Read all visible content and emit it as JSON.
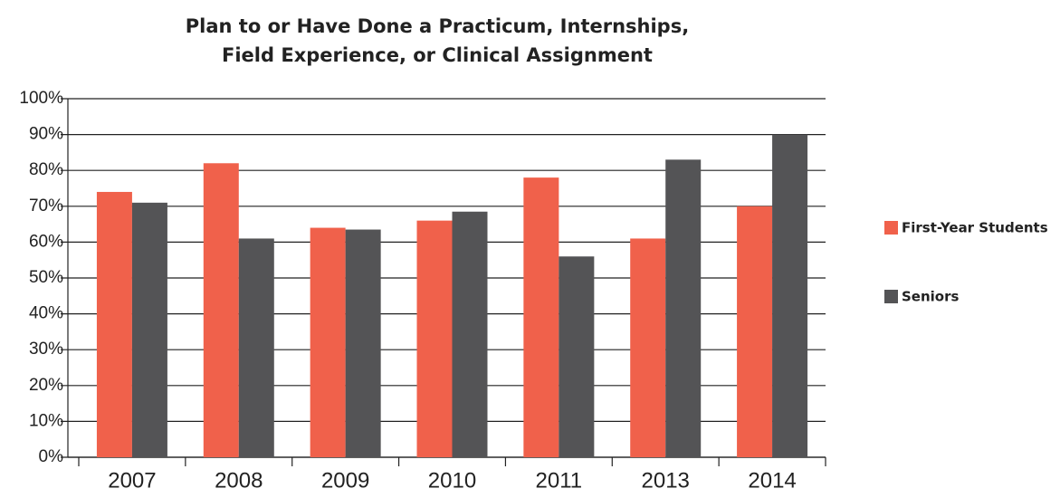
{
  "chart_data": {
    "type": "bar",
    "title": [
      "Plan to or Have Done a Practicum, Internships,",
      "Field Experience, or Clinical Assignment"
    ],
    "categories": [
      "2007",
      "2008",
      "2009",
      "2010",
      "2011",
      "2013",
      "2014"
    ],
    "series": [
      {
        "name": "First-Year Students",
        "color": "#f0614b",
        "values": [
          74,
          82,
          64,
          66,
          78,
          61,
          70
        ]
      },
      {
        "name": "Seniors",
        "color": "#545456",
        "values": [
          71,
          61,
          63.5,
          68.5,
          56,
          83,
          90
        ]
      }
    ],
    "ylim": [
      0,
      100
    ],
    "yticks": [
      {
        "value": 0,
        "label": "0%"
      },
      {
        "value": 10,
        "label": "10%"
      },
      {
        "value": 20,
        "label": "20%"
      },
      {
        "value": 30,
        "label": "30%"
      },
      {
        "value": 40,
        "label": "40%"
      },
      {
        "value": 50,
        "label": "50%"
      },
      {
        "value": 60,
        "label": "60%"
      },
      {
        "value": 70,
        "label": "70%"
      },
      {
        "value": 80,
        "label": "80%"
      },
      {
        "value": 90,
        "label": "90%"
      },
      {
        "value": 100,
        "label": "100%"
      }
    ],
    "grid": true,
    "legend": "right"
  }
}
